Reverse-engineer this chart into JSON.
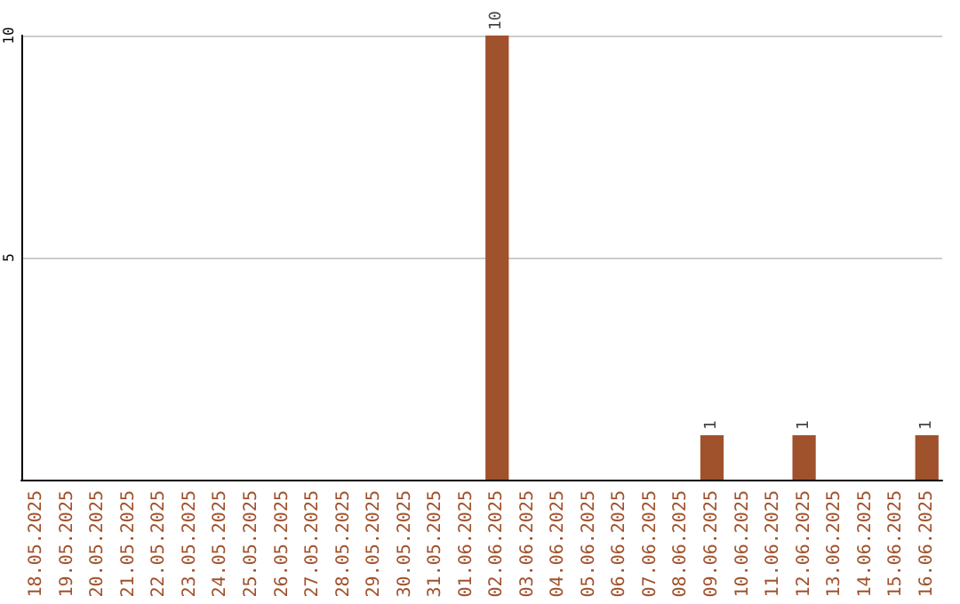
{
  "chart_data": {
    "type": "bar",
    "categories": [
      "18.05.2025",
      "19.05.2025",
      "20.05.2025",
      "21.05.2025",
      "22.05.2025",
      "23.05.2025",
      "24.05.2025",
      "25.05.2025",
      "26.05.2025",
      "27.05.2025",
      "28.05.2025",
      "29.05.2025",
      "30.05.2025",
      "31.05.2025",
      "01.06.2025",
      "02.06.2025",
      "03.06.2025",
      "04.06.2025",
      "05.06.2025",
      "06.06.2025",
      "07.06.2025",
      "08.06.2025",
      "09.06.2025",
      "10.06.2025",
      "11.06.2025",
      "12.06.2025",
      "13.06.2025",
      "14.06.2025",
      "15.06.2025",
      "16.06.2025"
    ],
    "values": [
      0,
      0,
      0,
      0,
      0,
      0,
      0,
      0,
      0,
      0,
      0,
      0,
      0,
      0,
      0,
      10,
      0,
      0,
      0,
      0,
      0,
      0,
      1,
      0,
      0,
      1,
      0,
      0,
      0,
      1
    ],
    "value_labels": [
      null,
      null,
      null,
      null,
      null,
      null,
      null,
      null,
      null,
      null,
      null,
      null,
      null,
      null,
      null,
      "10",
      null,
      null,
      null,
      null,
      null,
      null,
      "1",
      null,
      null,
      "1",
      null,
      null,
      null,
      "1"
    ],
    "color": "#a0522d",
    "ylim": [
      0,
      10
    ],
    "yticks": [
      5,
      10
    ],
    "grid": "y"
  }
}
